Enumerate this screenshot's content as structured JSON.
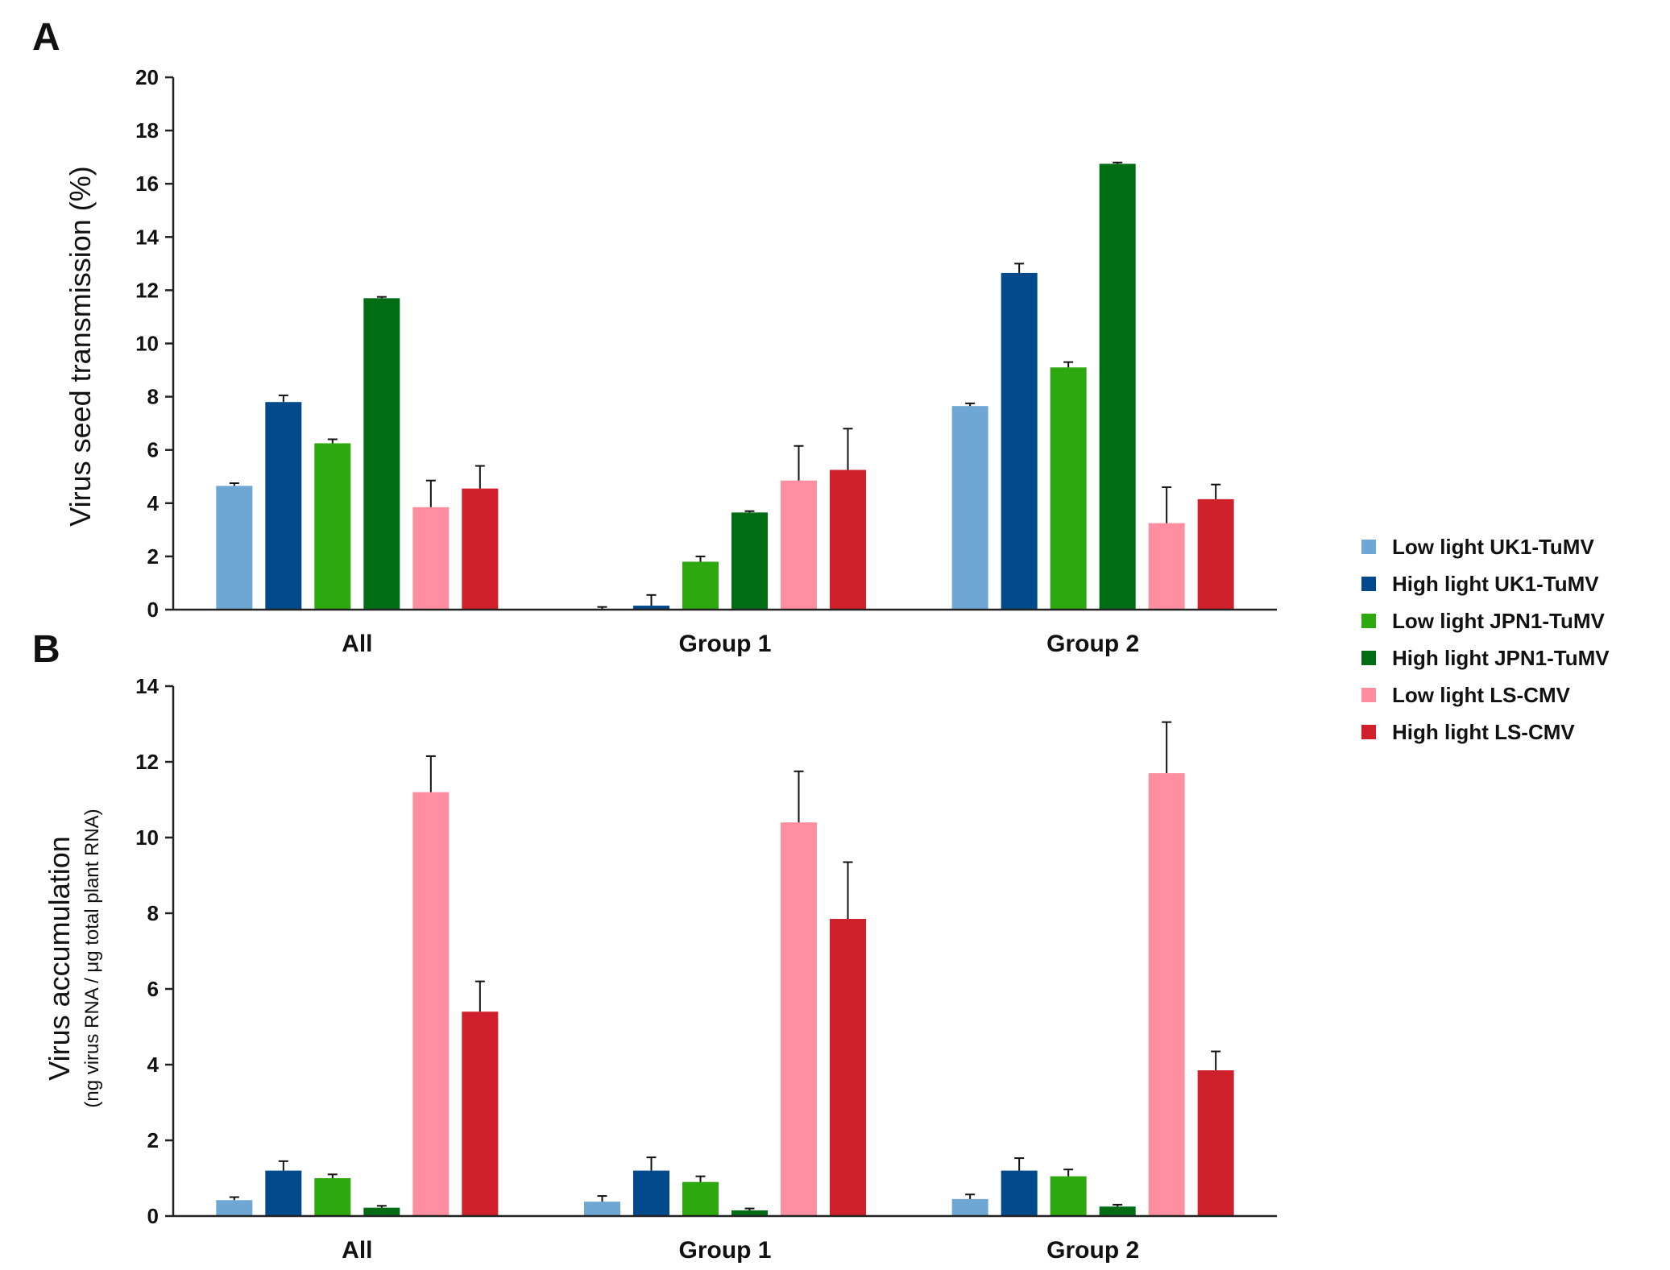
{
  "chart_data": [
    {
      "type": "bar",
      "panel": "A",
      "title": "",
      "xlabel": "",
      "ylabel": "Virus seed transmission (%)",
      "ylabel_sub": "",
      "ylim": [
        0,
        20
      ],
      "yticks": [
        0,
        2,
        4,
        6,
        8,
        10,
        12,
        14,
        16,
        18,
        20
      ],
      "grid": false,
      "categories": [
        "All",
        "Group 1",
        "Group 2"
      ],
      "series": [
        {
          "name": "Low light UK1-TuMV",
          "values": [
            4.65,
            0.0,
            7.65
          ],
          "errors": [
            0.1,
            0.1,
            0.1
          ]
        },
        {
          "name": "High light UK1-TuMV",
          "values": [
            7.8,
            0.15,
            12.65
          ],
          "errors": [
            0.25,
            0.4,
            0.35
          ]
        },
        {
          "name": "Low light JPN1-TuMV",
          "values": [
            6.25,
            1.8,
            9.1
          ],
          "errors": [
            0.15,
            0.2,
            0.2
          ]
        },
        {
          "name": "High light JPN1-TuMV",
          "values": [
            11.7,
            3.65,
            16.75
          ],
          "errors": [
            0.05,
            0.05,
            0.05
          ]
        },
        {
          "name": "Low light LS-CMV",
          "values": [
            3.85,
            4.85,
            3.25
          ],
          "errors": [
            1.0,
            1.3,
            1.35
          ]
        },
        {
          "name": "High light LS-CMV",
          "values": [
            4.55,
            5.25,
            4.15
          ],
          "errors": [
            0.85,
            1.55,
            0.55
          ]
        }
      ]
    },
    {
      "type": "bar",
      "panel": "B",
      "title": "",
      "xlabel": "",
      "ylabel": "Virus accumulation",
      "ylabel_sub": "(ng virus RNA / μg  total plant RNA)",
      "ylim": [
        0,
        14
      ],
      "yticks": [
        0,
        2,
        4,
        6,
        8,
        10,
        12,
        14
      ],
      "grid": false,
      "categories": [
        "All",
        "Group 1",
        "Group 2"
      ],
      "series": [
        {
          "name": "Low light UK1-TuMV",
          "values": [
            0.42,
            0.38,
            0.45
          ],
          "errors": [
            0.08,
            0.15,
            0.12
          ]
        },
        {
          "name": "High light UK1-TuMV",
          "values": [
            1.2,
            1.2,
            1.2
          ],
          "errors": [
            0.25,
            0.35,
            0.33
          ]
        },
        {
          "name": "Low light JPN1-TuMV",
          "values": [
            1.0,
            0.9,
            1.05
          ],
          "errors": [
            0.1,
            0.15,
            0.18
          ]
        },
        {
          "name": "High light JPN1-TuMV",
          "values": [
            0.22,
            0.15,
            0.25
          ],
          "errors": [
            0.05,
            0.05,
            0.05
          ]
        },
        {
          "name": "Low light LS-CMV",
          "values": [
            11.2,
            10.4,
            11.7
          ],
          "errors": [
            0.95,
            1.35,
            1.35
          ]
        },
        {
          "name": "High light LS-CMV",
          "values": [
            5.4,
            7.85,
            3.85
          ],
          "errors": [
            0.8,
            1.5,
            0.5
          ]
        }
      ]
    }
  ],
  "legend": {
    "placement": "right",
    "items": [
      {
        "label": "Low light UK1-TuMV",
        "color": "#6fa7d4"
      },
      {
        "label": "High light UK1-TuMV",
        "color": "#004a8c"
      },
      {
        "label": "Low light JPN1-TuMV",
        "color": "#2ea80f"
      },
      {
        "label": "High light JPN1-TuMV",
        "color": "#006d14"
      },
      {
        "label": "Low light LS-CMV",
        "color": "#ff8fa0"
      },
      {
        "label": "High light LS-CMV",
        "color": "#d0202b"
      }
    ]
  }
}
